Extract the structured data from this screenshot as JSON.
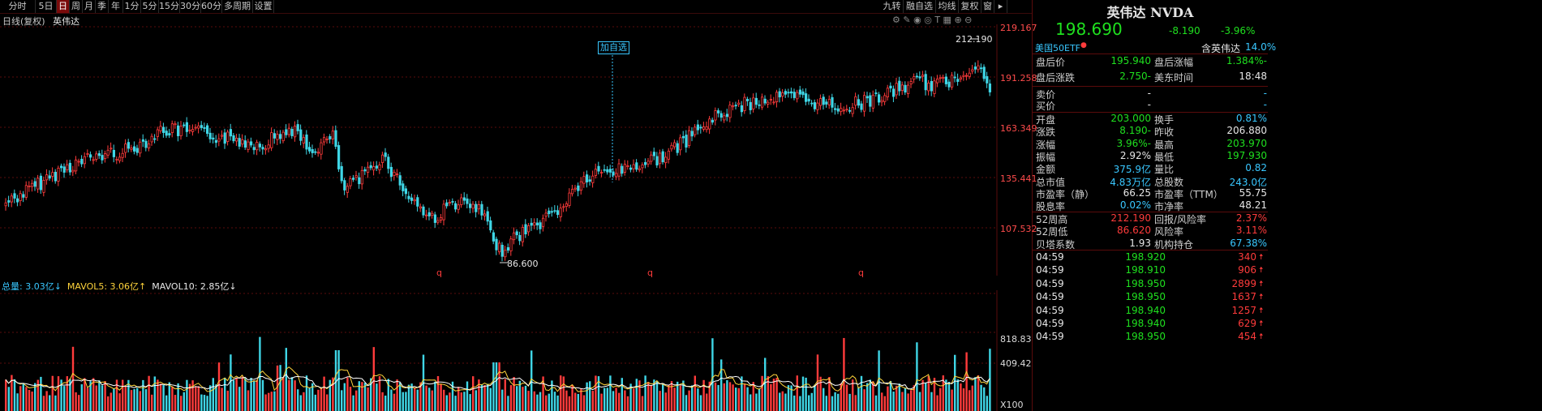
{
  "toolbar": {
    "items": [
      "分时",
      "5日",
      "日",
      "周",
      "月",
      "季",
      "年",
      "1分",
      "5分",
      "15分",
      "30分",
      "60分",
      "多周期",
      "设置"
    ],
    "active": "日",
    "right_items": [
      "九转",
      "融自选",
      "均线",
      "复权",
      "窗"
    ]
  },
  "chart_header": {
    "period_label": "日线(复权)",
    "stock_name": "英伟达"
  },
  "price_axis": [
    "219.167",
    "191.258",
    "163.349",
    "135.441",
    "107.532"
  ],
  "annotations": {
    "high_label": "212.190",
    "low_label": "86.600",
    "add_watch": "加自选",
    "q_markers": [
      "q",
      "q",
      "q"
    ]
  },
  "volume": {
    "total_label": "总量: 3.03亿↓",
    "mavol5_label": "MAVOL5: 3.06亿↑",
    "mavol10_label": "MAVOL10: 2.85亿↓",
    "axis": [
      "818.83万",
      "409.42万",
      "X100"
    ]
  },
  "quote": {
    "title": "英伟达 NVDA",
    "price": "198.690",
    "change": "-8.190",
    "change_pct": "-3.96%",
    "etf_label": "美国50ETF",
    "holding_label": "含英伟达",
    "holding_pct": "14.0%"
  },
  "after_hours": [
    {
      "l1": "盘后价",
      "v1": "195.940",
      "c1": "g",
      "l2": "盘后涨幅",
      "v2": "-1.384%",
      "c2": "g"
    },
    {
      "l1": "盘后涨跌",
      "v1": "-2.750",
      "c1": "g",
      "l2": "美东时间",
      "v2": "18:48",
      "c2": "w"
    }
  ],
  "bidask": [
    {
      "label": "卖价",
      "price": "-",
      "vol": "-"
    },
    {
      "label": "买价",
      "price": "-",
      "vol": "-"
    }
  ],
  "stats": [
    {
      "l1": "开盘",
      "v1": "203.000",
      "c1": "g",
      "l2": "换手",
      "v2": "0.81%",
      "c2": "c"
    },
    {
      "l1": "涨跌",
      "v1": "-8.190",
      "c1": "g",
      "l2": "昨收",
      "v2": "206.880",
      "c2": "w"
    },
    {
      "l1": "涨幅",
      "v1": "-3.96%",
      "c1": "g",
      "l2": "最高",
      "v2": "203.970",
      "c2": "g"
    },
    {
      "l1": "振幅",
      "v1": "2.92%",
      "c1": "w",
      "l2": "最低",
      "v2": "197.930",
      "c2": "g"
    },
    {
      "l1": "金额",
      "v1": "375.9亿",
      "c1": "c",
      "l2": "量比",
      "v2": "0.82",
      "c2": "c"
    },
    {
      "l1": "总市值",
      "v1": "4.83万亿",
      "c1": "c",
      "l2": "总股数",
      "v2": "243.0亿",
      "c2": "c"
    },
    {
      "l1": "市盈率（静）",
      "v1": "66.25",
      "c1": "w",
      "l2": "市盈率（TTM）",
      "v2": "55.75",
      "c2": "w"
    },
    {
      "l1": "股息率",
      "v1": "0.02%",
      "c1": "c",
      "l2": "市净率",
      "v2": "48.21",
      "c2": "w"
    }
  ],
  "stats2": [
    {
      "l1": "52周高",
      "v1": "212.190",
      "c1": "r",
      "l2": "回报/风险率",
      "v2": "2.37%",
      "c2": "r"
    },
    {
      "l1": "52周低",
      "v1": "86.620",
      "c1": "r",
      "l2": "风险率",
      "v2": "3.11%",
      "c2": "r"
    },
    {
      "l1": "贝塔系数",
      "v1": "1.93",
      "c1": "w",
      "l2": "机构持仓",
      "v2": "67.38%",
      "c2": "c"
    }
  ],
  "trades": [
    {
      "time": "04:59",
      "price": "198.920",
      "vol": "340"
    },
    {
      "time": "04:59",
      "price": "198.910",
      "vol": "906"
    },
    {
      "time": "04:59",
      "price": "198.950",
      "vol": "2899"
    },
    {
      "time": "04:59",
      "price": "198.950",
      "vol": "1637"
    },
    {
      "time": "04:59",
      "price": "198.940",
      "vol": "1257"
    },
    {
      "time": "04:59",
      "price": "198.940",
      "vol": "629"
    },
    {
      "time": "04:59",
      "price": "198.950",
      "vol": "454"
    }
  ],
  "colors": {
    "up": "#ff3b3b",
    "down": "#3fd6e6",
    "grid": "#5a0b0b",
    "ma5": "#ffd43b",
    "ma10": "#ffffff"
  }
}
